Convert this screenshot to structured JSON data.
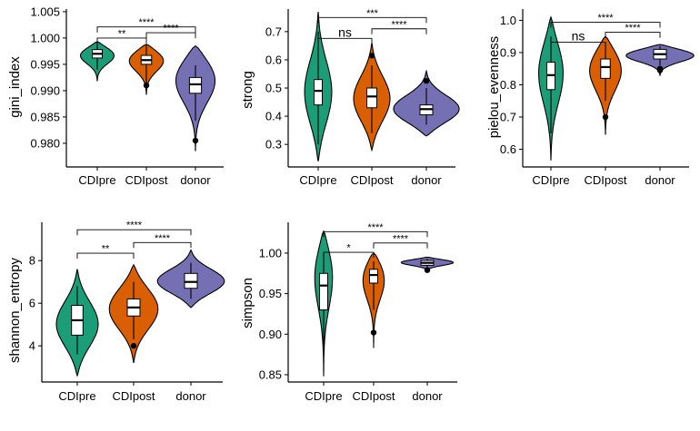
{
  "colors": {
    "CDIpre": "#1B9E77",
    "CDIpost": "#D95F02",
    "donor": "#7570B3"
  },
  "chart_data": [
    {
      "type": "violin",
      "id": "gini",
      "ylabel": "gini_index",
      "categories": [
        "CDIpre",
        "CDIpost",
        "donor"
      ],
      "ylim": [
        0.9755,
        1.0055
      ],
      "yticks": [
        0.98,
        0.985,
        0.99,
        0.995,
        1.0,
        1.005
      ],
      "ytick_labels": [
        "0.980",
        "0.985",
        "0.990",
        "0.995",
        "1.000",
        "1.005"
      ],
      "groups": [
        {
          "name": "CDIpre",
          "ymin": 0.9918,
          "ymax": 0.9993,
          "mode": 0.997,
          "q1": 0.9962,
          "median": 0.997,
          "q3": 0.9978,
          "wlo": 0.994,
          "whi": 0.9993,
          "outliers": []
        },
        {
          "name": "CDIpost",
          "ymin": 0.9892,
          "ymax": 0.9988,
          "mode": 0.9962,
          "q1": 0.995,
          "median": 0.9958,
          "q3": 0.9967,
          "wlo": 0.991,
          "whi": 0.9988,
          "outliers": [
            0.991
          ]
        },
        {
          "name": "donor",
          "ymin": 0.9785,
          "ymax": 0.9985,
          "mode": 0.993,
          "q1": 0.9895,
          "median": 0.9912,
          "q3": 0.9925,
          "wlo": 0.9843,
          "whi": 0.9948,
          "outliers": [
            0.9805
          ]
        }
      ],
      "comparisons": [
        {
          "from": 0,
          "to": 1,
          "label": "**",
          "y": 1.0
        },
        {
          "from": 1,
          "to": 2,
          "label": "****",
          "y": 1.001
        },
        {
          "from": 0,
          "to": 2,
          "label": "****",
          "y": 1.0021
        }
      ]
    },
    {
      "type": "violin",
      "id": "strong",
      "ylabel": "strong",
      "categories": [
        "CDIpre",
        "CDIpost",
        "donor"
      ],
      "ylim": [
        0.22,
        0.78
      ],
      "yticks": [
        0.3,
        0.4,
        0.5,
        0.6,
        0.7
      ],
      "ytick_labels": [
        "0.3",
        "0.4",
        "0.5",
        "0.6",
        "0.7"
      ],
      "groups": [
        {
          "name": "CDIpre",
          "ymin": 0.24,
          "ymax": 0.77,
          "mode": 0.48,
          "q1": 0.44,
          "median": 0.49,
          "q3": 0.53,
          "wlo": 0.3,
          "whi": 0.7,
          "outliers": []
        },
        {
          "name": "CDIpost",
          "ymin": 0.28,
          "ymax": 0.66,
          "mode": 0.46,
          "q1": 0.43,
          "median": 0.47,
          "q3": 0.5,
          "wlo": 0.34,
          "whi": 0.58,
          "outliers": [
            0.615
          ]
        },
        {
          "name": "donor",
          "ymin": 0.33,
          "ymax": 0.56,
          "mode": 0.42,
          "q1": 0.405,
          "median": 0.425,
          "q3": 0.44,
          "wlo": 0.37,
          "whi": 0.5,
          "outliers": [
            0.525
          ]
        }
      ],
      "comparisons": [
        {
          "from": 0,
          "to": 1,
          "label": "ns",
          "y": 0.676
        },
        {
          "from": 1,
          "to": 2,
          "label": "****",
          "y": 0.71
        },
        {
          "from": 0,
          "to": 2,
          "label": "***",
          "y": 0.75
        }
      ]
    },
    {
      "type": "violin",
      "id": "pielou",
      "ylabel": "pielou_evenness",
      "categories": [
        "CDIpre",
        "CDIpost",
        "donor"
      ],
      "ylim": [
        0.545,
        1.035
      ],
      "yticks": [
        0.6,
        0.7,
        0.8,
        0.9,
        1.0
      ],
      "ytick_labels": [
        "0.6",
        "0.7",
        "0.8",
        "0.9",
        "1.0"
      ],
      "groups": [
        {
          "name": "CDIpre",
          "ymin": 0.565,
          "ymax": 1.01,
          "mode": 0.85,
          "q1": 0.785,
          "median": 0.83,
          "q3": 0.87,
          "wlo": 0.65,
          "whi": 0.95,
          "outliers": []
        },
        {
          "name": "CDIpost",
          "ymin": 0.645,
          "ymax": 0.95,
          "mode": 0.86,
          "q1": 0.82,
          "median": 0.855,
          "q3": 0.88,
          "wlo": 0.75,
          "whi": 0.93,
          "outliers": [
            0.7
          ]
        },
        {
          "name": "donor",
          "ymin": 0.83,
          "ymax": 0.925,
          "mode": 0.895,
          "q1": 0.88,
          "median": 0.895,
          "q3": 0.91,
          "wlo": 0.86,
          "whi": 0.92,
          "outliers": [
            0.85,
            0.845
          ]
        }
      ],
      "comparisons": [
        {
          "from": 0,
          "to": 1,
          "label": "ns",
          "y": 0.932
        },
        {
          "from": 1,
          "to": 2,
          "label": "****",
          "y": 0.963
        },
        {
          "from": 0,
          "to": 2,
          "label": "****",
          "y": 0.994
        }
      ]
    },
    {
      "type": "violin",
      "id": "shannon",
      "ylabel": "shannon_entropy",
      "categories": [
        "CDIpre",
        "CDIpost",
        "donor"
      ],
      "ylim": [
        2.3,
        9.8
      ],
      "yticks": [
        4,
        6,
        8
      ],
      "ytick_labels": [
        "4",
        "6",
        "8"
      ],
      "groups": [
        {
          "name": "CDIpre",
          "ymin": 2.6,
          "ymax": 7.6,
          "mode": 5.0,
          "q1": 4.5,
          "median": 5.2,
          "q3": 5.9,
          "wlo": 3.6,
          "whi": 6.8,
          "outliers": []
        },
        {
          "name": "CDIpost",
          "ymin": 3.2,
          "ymax": 7.8,
          "mode": 5.8,
          "q1": 5.4,
          "median": 5.8,
          "q3": 6.2,
          "wlo": 4.3,
          "whi": 7.0,
          "outliers": [
            4.0
          ]
        },
        {
          "name": "donor",
          "ymin": 5.8,
          "ymax": 8.5,
          "mode": 7.0,
          "q1": 6.7,
          "median": 7.0,
          "q3": 7.4,
          "wlo": 6.2,
          "whi": 7.9,
          "outliers": []
        }
      ],
      "comparisons": [
        {
          "from": 0,
          "to": 1,
          "label": "**",
          "y": 8.35
        },
        {
          "from": 1,
          "to": 2,
          "label": "****",
          "y": 8.85
        },
        {
          "from": 0,
          "to": 2,
          "label": "****",
          "y": 9.45
        }
      ]
    },
    {
      "type": "violin",
      "id": "simpson",
      "ylabel": "simpson",
      "categories": [
        "CDIpre",
        "CDIpost",
        "donor"
      ],
      "ylim": [
        0.841,
        1.038
      ],
      "yticks": [
        0.85,
        0.9,
        0.95,
        1.0
      ],
      "ytick_labels": [
        "0.85",
        "0.90",
        "0.95",
        "1.00"
      ],
      "groups": [
        {
          "name": "CDIpre",
          "ymin": 0.848,
          "ymax": 1.027,
          "mode": 0.98,
          "q1": 0.93,
          "median": 0.96,
          "q3": 0.975,
          "wlo": 0.875,
          "whi": 1.0,
          "outliers": []
        },
        {
          "name": "CDIpost",
          "ymin": 0.883,
          "ymax": 1.0,
          "mode": 0.975,
          "q1": 0.963,
          "median": 0.973,
          "q3": 0.98,
          "wlo": 0.93,
          "whi": 0.99,
          "outliers": [
            0.902
          ]
        },
        {
          "name": "donor",
          "ymin": 0.978,
          "ymax": 0.995,
          "mode": 0.989,
          "q1": 0.985,
          "median": 0.988,
          "q3": 0.991,
          "wlo": 0.982,
          "whi": 0.993,
          "outliers": [
            0.979
          ]
        }
      ],
      "comparisons": [
        {
          "from": 0,
          "to": 1,
          "label": "*",
          "y": 1.001
        },
        {
          "from": 1,
          "to": 2,
          "label": "****",
          "y": 1.0125
        },
        {
          "from": 0,
          "to": 2,
          "label": "****",
          "y": 1.0265
        }
      ]
    }
  ]
}
